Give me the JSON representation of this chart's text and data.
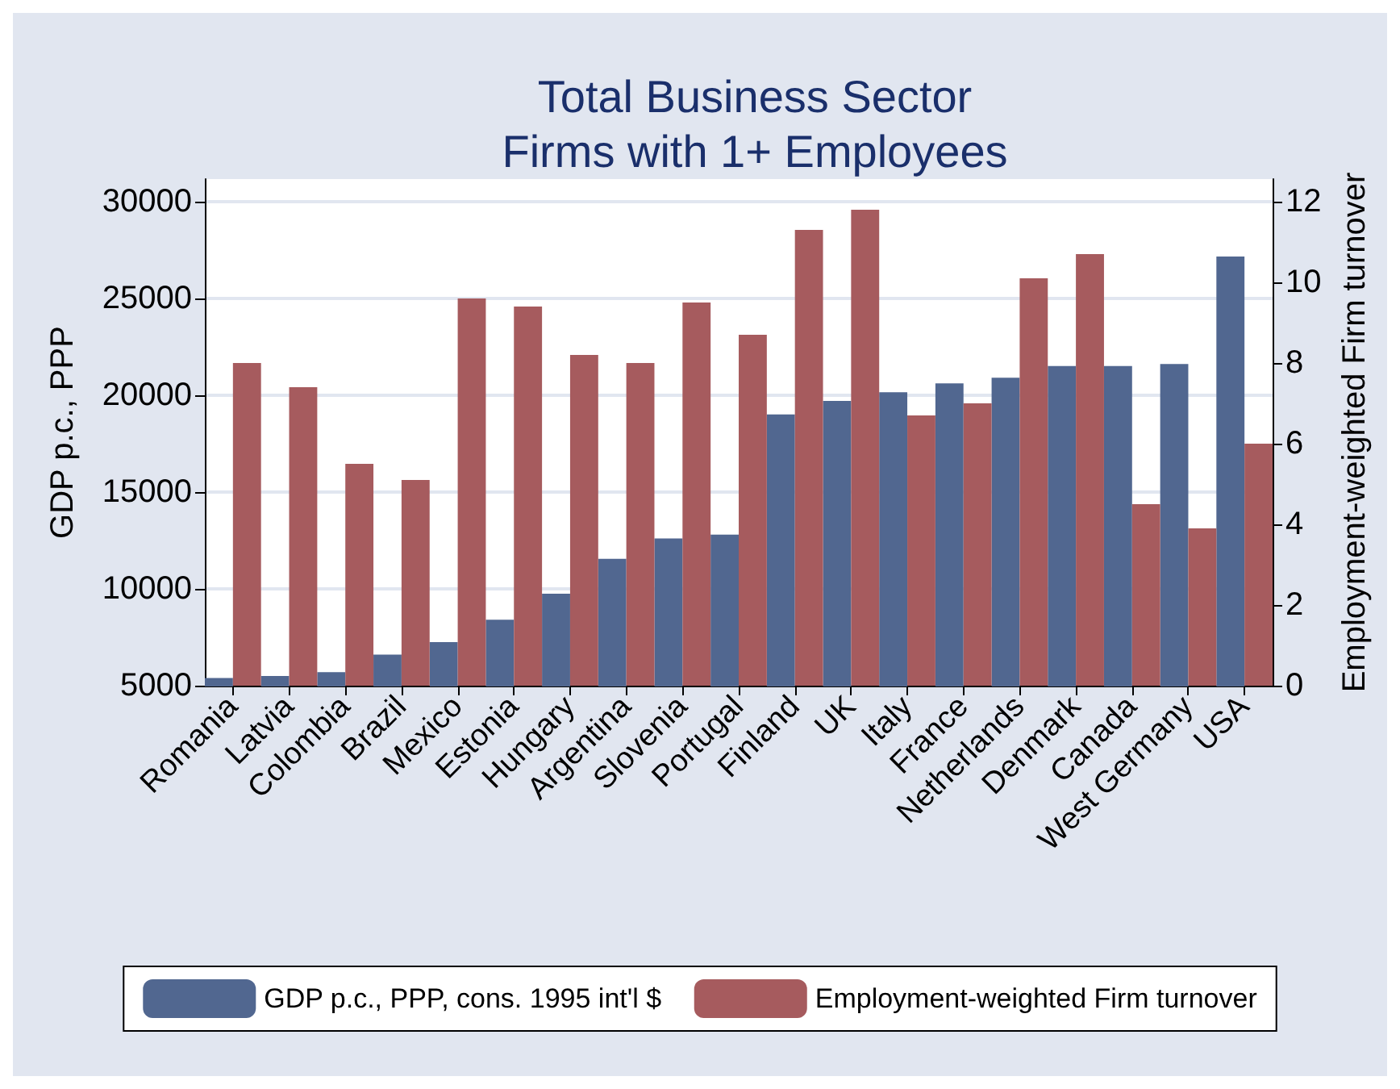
{
  "chart_data": {
    "type": "bar",
    "title": "Total Business Sector\nFirms with 1+ Employees",
    "categories": [
      "Romania",
      "Latvia",
      "Colombia",
      "Brazil",
      "Mexico",
      "Estonia",
      "Hungary",
      "Argentina",
      "Slovenia",
      "Portugal",
      "Finland",
      "UK",
      "Italy",
      "France",
      "Netherlands",
      "Denmark",
      "Canada",
      "West Germany",
      "USA"
    ],
    "series": [
      {
        "name": "GDP p.c., PPP, cons. 1995 int'l $",
        "color": "#516790",
        "values": [
          5400,
          5500,
          5700,
          6600,
          7250,
          8400,
          9750,
          11550,
          12600,
          12800,
          19000,
          19700,
          20150,
          20600,
          20900,
          21500,
          21500,
          21600,
          27150
        ]
      },
      {
        "name": "Employment-weighted Firm turnover",
        "color": "#a65b5e",
        "axis": "y2",
        "values": [
          8.0,
          7.4,
          5.5,
          5.1,
          9.6,
          9.4,
          8.2,
          8.0,
          9.5,
          8.7,
          11.3,
          11.8,
          6.7,
          7.0,
          10.1,
          10.7,
          4.5,
          3.9,
          6.0
        ]
      }
    ],
    "ylabel": "GDP p.c., PPP",
    "y2label": "Employment-weighted Firm turnover",
    "ylim": [
      5000,
      31150
    ],
    "yticks": [
      5000,
      10000,
      15000,
      20000,
      25000,
      30000
    ],
    "y2lim": [
      0,
      12.56
    ],
    "y2ticks": [
      0,
      2,
      4,
      6,
      8,
      10,
      12
    ],
    "grid": "y",
    "legend": "bottom"
  }
}
